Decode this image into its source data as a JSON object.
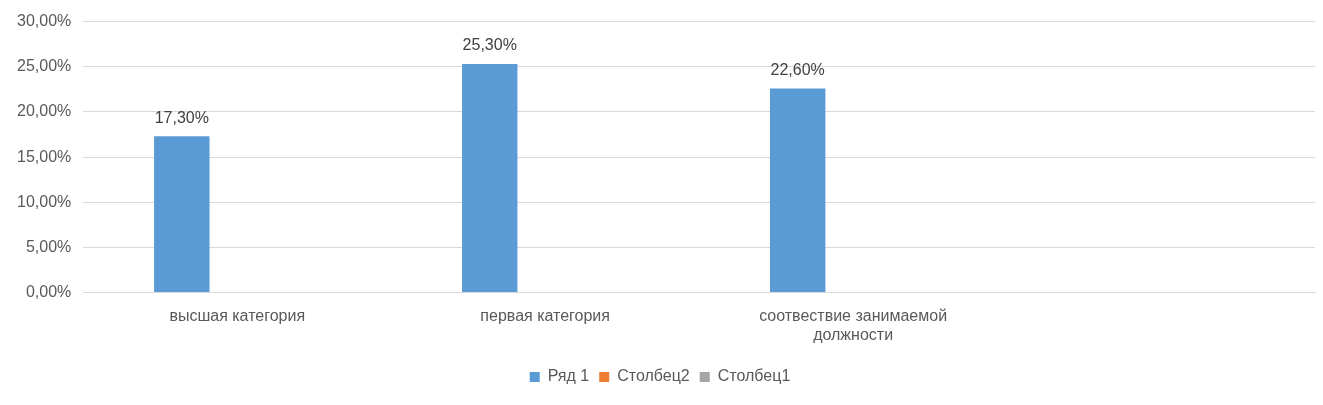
{
  "chart_data": {
    "type": "bar",
    "categories": [
      "высшая категория",
      "первая категория",
      "соотвествие занимаемой должности",
      null
    ],
    "series": [
      {
        "name": "Ряд 1",
        "color": "#5b9bd5",
        "values": [
          17.3,
          25.3,
          22.6,
          null
        ],
        "value_labels": [
          "17,30%",
          "25,30%",
          "22,60%",
          null
        ]
      },
      {
        "name": "Столбец2",
        "color": "#ed7d31",
        "values": [
          null,
          null,
          null,
          null
        ]
      },
      {
        "name": "Столбец1",
        "color": "#a5a5a5",
        "values": [
          null,
          null,
          null,
          null
        ]
      }
    ],
    "ylim": [
      0,
      30
    ],
    "yticks": [
      {
        "value": 0,
        "label": "0,00%"
      },
      {
        "value": 5,
        "label": "5,00%"
      },
      {
        "value": 10,
        "label": "10,00%"
      },
      {
        "value": 15,
        "label": "15,00%"
      },
      {
        "value": 20,
        "label": "20,00%"
      },
      {
        "value": 25,
        "label": "25,00%"
      },
      {
        "value": 30,
        "label": "30,00%"
      }
    ],
    "grid": "y",
    "legend": "bottom"
  }
}
